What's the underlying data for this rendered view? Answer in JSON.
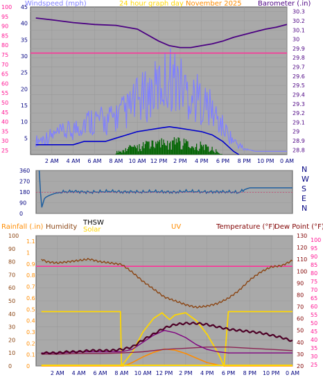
{
  "header": {
    "windspeed_label": "Windspeed (mph)",
    "title_24h": "24 hour graph day",
    "title_date": "November 2025",
    "barometer_label": "Barometer (.in)"
  },
  "direction_labels": [
    "N",
    "W",
    "S",
    "E",
    "N"
  ],
  "bottom_header": {
    "rainfall_label": "Rainfall (.in)",
    "humidity_label": "Humidity",
    "thsw_label": "THSW",
    "solar_label": "Solar",
    "uv_label": "UV",
    "temperature_label": "Temperature (°F)",
    "dewpoint_label": "Dew Point (°F)"
  },
  "colors": {
    "wind_axis": "#ff1493",
    "baro_axis": "#4b0082",
    "gust": "#8080ff",
    "wind_avg": "#0000cd",
    "wind_low": "#006400",
    "baro_line": "#4b0082",
    "direction_line": "#1f5f9f",
    "humidity": "#8b4513",
    "temperature": "#4d0026",
    "dewpoint": "#8b2252",
    "thsw": "#800080",
    "solar": "#ffd700",
    "uv": "#ff8c00",
    "rain": "#ffd700",
    "reference": "#ff3399",
    "axis_rain": "#ff8c00",
    "axis_temp": "#800000",
    "axis_dew": "#ff1493",
    "bg": "#a9a9a9"
  },
  "chart_data": [
    {
      "type": "line",
      "title": "24 hour graph day November 2025",
      "x_ticks": [
        "2 AM",
        "4 AM",
        "6 AM",
        "8 AM",
        "10 AM",
        "12 PM",
        "2 PM",
        "4 PM",
        "6 PM",
        "8 PM",
        "10 PM",
        "0 AM"
      ],
      "y_left_label": "Windspeed (mph)",
      "y_left_ticks": [
        "25",
        "30",
        "35",
        "40",
        "45",
        "50",
        "55",
        "60",
        "65",
        "70",
        "75",
        "80",
        "85",
        "90",
        "95",
        "100"
      ],
      "y_left_wind_ticks": [
        "5",
        "10",
        "15",
        "20",
        "25",
        "30",
        "35",
        "40",
        "45"
      ],
      "y_right_label": "Barometer (.in)",
      "y_right_ticks": [
        "28.8",
        "28.9",
        "29",
        "29.1",
        "29.2",
        "29.3",
        "29.4",
        "29.5",
        "29.6",
        "29.7",
        "29.8",
        "29.9",
        "30",
        "30.1",
        "30.2",
        "30.3"
      ],
      "barometer": {
        "x": [
          0.5,
          2,
          4,
          6,
          8,
          10,
          12,
          13,
          14,
          15,
          16,
          17,
          18,
          19,
          20,
          21,
          22,
          23,
          24
        ],
        "y": [
          30.23,
          30.21,
          30.18,
          30.16,
          30.15,
          30.11,
          29.98,
          29.93,
          29.91,
          29.91,
          29.93,
          29.95,
          29.98,
          30.02,
          30.05,
          30.08,
          30.11,
          30.13,
          30.16
        ]
      },
      "wind_reference": 29.85,
      "gust": {
        "x": [
          0.5,
          2,
          4,
          5,
          6,
          7,
          8,
          9,
          10,
          11,
          12,
          13,
          14,
          15,
          16,
          17,
          18,
          19,
          20,
          21,
          22,
          23,
          24
        ],
        "y": [
          5,
          7,
          9,
          12,
          13,
          12,
          14,
          16,
          20,
          22,
          25,
          29,
          26,
          22,
          20,
          16,
          10,
          5,
          2,
          1,
          1,
          1,
          1
        ]
      },
      "average": {
        "x": [
          0.5,
          2,
          4,
          5,
          6,
          7,
          8,
          9,
          10,
          11,
          12,
          13,
          14,
          15,
          16,
          17,
          18,
          19,
          19.5
        ],
        "y": [
          3,
          3,
          3,
          4,
          4,
          4,
          5,
          6,
          7,
          7.5,
          8,
          8.5,
          8,
          7.5,
          7,
          6,
          4,
          1,
          0
        ]
      },
      "low": {
        "x": [
          8,
          9,
          10,
          11,
          12,
          13,
          14,
          15,
          16,
          17,
          18
        ],
        "y": [
          1,
          2,
          3,
          3.5,
          4,
          4.5,
          4,
          3.5,
          3,
          2,
          0
        ]
      }
    },
    {
      "type": "line",
      "title": "Wind direction",
      "y_ticks": [
        "0",
        "90",
        "180",
        "270",
        "360"
      ],
      "direction_deg": {
        "x": [
          0.3,
          0.5,
          0.8,
          1.2,
          1.8,
          2.5,
          3.5,
          5,
          6,
          7,
          8,
          9,
          10,
          11,
          12,
          13,
          14,
          15,
          16,
          17,
          18,
          19,
          19.5,
          20,
          21,
          22,
          23,
          24
        ],
        "y": [
          360,
          40,
          130,
          150,
          170,
          180,
          185,
          178,
          182,
          186,
          180,
          182,
          179,
          184,
          181,
          178,
          186,
          183,
          180,
          182,
          181,
          176,
          200,
          215,
          215,
          215,
          215,
          215
        ]
      }
    },
    {
      "type": "line",
      "title": "Temperature / Humidity / Solar",
      "x_ticks": [
        "2 AM",
        "4 AM",
        "6 AM",
        "8 AM",
        "10 AM",
        "12 PM",
        "2 PM",
        "4 PM",
        "6 PM",
        "8 PM",
        "10 PM",
        "0 AM"
      ],
      "y_rain_ticks": [
        "0",
        "0.1",
        "0.2",
        "0.3",
        "0.4",
        "0.5",
        "0.6",
        "0.7",
        "0.8",
        "0.9",
        "1",
        "1.1"
      ],
      "y_humidity_ticks": [
        "0",
        "10",
        "20",
        "30",
        "40",
        "50",
        "60",
        "70",
        "80",
        "90",
        "100"
      ],
      "y_temp_ticks": [
        "20",
        "30",
        "40",
        "50",
        "60",
        "70",
        "80",
        "90",
        "100",
        "110",
        "120",
        "130"
      ],
      "y_dew_ticks": [
        "25",
        "30",
        "35",
        "40",
        "45",
        "50",
        "55",
        "60",
        "65",
        "70",
        "75",
        "80",
        "85",
        "90",
        "95",
        "100"
      ],
      "humidity": {
        "x": [
          0.5,
          1,
          2,
          3,
          4,
          5,
          6,
          7,
          8,
          9,
          10,
          11,
          12,
          13,
          14,
          15,
          16,
          17,
          18,
          19,
          20,
          21,
          22,
          23,
          24
        ],
        "y": [
          82,
          80,
          79,
          80,
          81,
          82,
          80,
          79,
          78,
          72,
          65,
          59,
          53,
          50,
          47,
          45,
          46,
          48,
          52,
          58,
          66,
          72,
          76,
          77,
          81
        ]
      },
      "temperature": {
        "x": [
          0.5,
          1,
          2,
          3,
          4,
          5,
          6,
          7,
          8,
          9,
          10,
          11,
          12,
          13,
          14,
          15,
          16,
          17,
          18,
          19,
          20,
          21,
          22,
          23,
          24
        ],
        "y": [
          31,
          31,
          31,
          32,
          32,
          33,
          33,
          33,
          34,
          36,
          42,
          47,
          52,
          55,
          56,
          56,
          55,
          53,
          51,
          50,
          49,
          48,
          46,
          44,
          41
        ]
      },
      "dewpoint": {
        "x": [
          0.5,
          2,
          4,
          6,
          8,
          10,
          12,
          14,
          16,
          18,
          20,
          22,
          24
        ],
        "y": [
          30,
          30,
          30.5,
          30.5,
          31,
          32,
          34,
          35,
          36,
          36,
          35,
          34,
          33
        ]
      },
      "thsw": {
        "x": [
          0.5,
          2,
          4,
          6,
          8,
          9,
          10,
          11,
          12,
          13,
          14,
          15,
          16,
          17,
          18,
          20,
          22,
          24
        ],
        "y": [
          31,
          31,
          32,
          32,
          32,
          34,
          40,
          46,
          50,
          48,
          44,
          38,
          34,
          32,
          31,
          31,
          31,
          31
        ]
      },
      "solar": {
        "x": [
          0.5,
          2,
          4,
          6,
          7.9,
          8,
          9,
          10,
          11,
          11.8,
          12,
          12.5,
          13,
          14,
          15,
          16,
          17,
          17.6,
          18,
          20,
          22,
          24
        ],
        "y": [
          0.48,
          0.48,
          0.48,
          0.48,
          0.48,
          0,
          0.12,
          0.3,
          0.42,
          0.47,
          0.45,
          0.41,
          0.45,
          0.47,
          0.4,
          0.28,
          0.12,
          0,
          0.48,
          0.48,
          0.48,
          0.48
        ]
      },
      "uv": {
        "x": [
          0.5,
          8.2,
          9,
          10,
          11,
          12,
          13,
          14,
          15,
          16,
          17,
          17.6,
          24
        ],
        "y": [
          0,
          0,
          0.03,
          0.08,
          0.12,
          0.15,
          0.14,
          0.11,
          0.07,
          0.03,
          0.01,
          0,
          0
        ]
      },
      "rain": {
        "x": [
          0.5,
          24
        ],
        "y": [
          0,
          0
        ]
      },
      "humidity_reference": 76.5
    }
  ]
}
